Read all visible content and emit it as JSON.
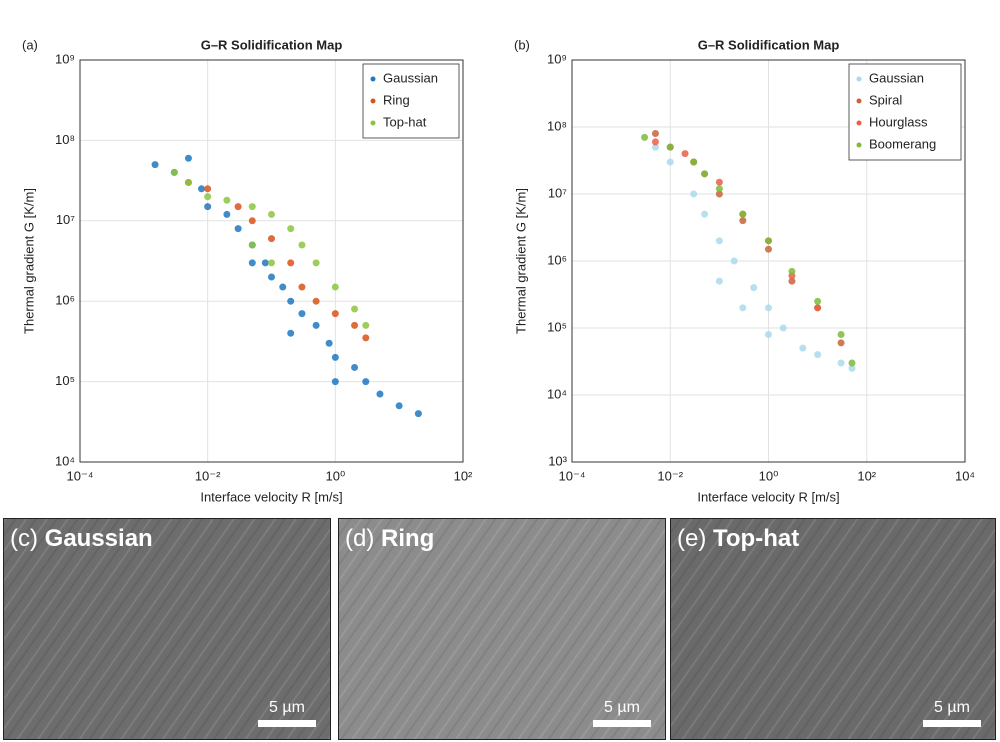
{
  "chart_data": [
    {
      "type": "scatter",
      "panel_label": "(a)",
      "title": "G–R Solidification Map",
      "x_label": "Interface velocity R [m/s]",
      "y_label": "Thermal gradient G [K/m]",
      "log_x": true,
      "log_y": true,
      "grid": true,
      "legend": "upper right",
      "xlim": [
        0.0001,
        100
      ],
      "ylim": [
        10000,
        1000000000
      ],
      "xticks": [
        {
          "value": 0.0001,
          "label": "10⁻⁴"
        },
        {
          "value": 0.01,
          "label": "10⁻²"
        },
        {
          "value": 1,
          "label": "10⁰"
        },
        {
          "value": 100,
          "label": "10²"
        }
      ],
      "yticks": [
        {
          "value": 10000,
          "label": "10⁴"
        },
        {
          "value": 100000,
          "label": "10⁵"
        },
        {
          "value": 1000000,
          "label": "10⁶"
        },
        {
          "value": 10000000,
          "label": "10⁷"
        },
        {
          "value": 100000000,
          "label": "10⁸"
        },
        {
          "value": 1000000000,
          "label": "10⁹"
        }
      ],
      "series": [
        {
          "name": "Gaussian",
          "color": "#1f78c1",
          "x": [
            0.0015,
            0.003,
            0.005,
            0.008,
            0.01,
            0.02,
            0.03,
            0.05,
            0.08,
            0.1,
            0.15,
            0.2,
            0.3,
            0.5,
            0.8,
            1,
            2,
            3,
            5,
            10,
            20,
            0.05,
            0.2,
            1
          ],
          "values": [
            50000000,
            40000000,
            60000000,
            25000000,
            15000000,
            12000000,
            8000000,
            5000000,
            3000000,
            2000000,
            1500000,
            1000000,
            700000,
            500000,
            300000,
            200000,
            150000,
            100000,
            70000,
            50000,
            40000,
            3000000,
            400000,
            100000
          ]
        },
        {
          "name": "Ring",
          "color": "#d9541a",
          "x": [
            0.005,
            0.01,
            0.03,
            0.05,
            0.1,
            0.2,
            0.3,
            0.5,
            1,
            2,
            3
          ],
          "values": [
            30000000,
            25000000,
            15000000,
            10000000,
            6000000,
            3000000,
            1500000,
            1000000,
            700000,
            500000,
            350000
          ]
        },
        {
          "name": "Top-hat",
          "color": "#8cc63f",
          "x": [
            0.003,
            0.005,
            0.01,
            0.02,
            0.05,
            0.1,
            0.2,
            0.3,
            0.5,
            1,
            2,
            3,
            0.05,
            0.1
          ],
          "values": [
            40000000,
            30000000,
            20000000,
            18000000,
            15000000,
            12000000,
            8000000,
            5000000,
            3000000,
            1500000,
            800000,
            500000,
            5000000,
            3000000
          ]
        }
      ]
    },
    {
      "type": "scatter",
      "panel_label": "(b)",
      "title": "G–R Solidification Map",
      "x_label": "Interface velocity R [m/s]",
      "y_label": "Thermal gradient G [K/m]",
      "log_x": true,
      "log_y": true,
      "grid": true,
      "legend": "upper right",
      "xlim": [
        0.0001,
        10000
      ],
      "ylim": [
        1000,
        1000000000
      ],
      "xticks": [
        {
          "value": 0.0001,
          "label": "10⁻⁴"
        },
        {
          "value": 0.01,
          "label": "10⁻²"
        },
        {
          "value": 1,
          "label": "10⁰"
        },
        {
          "value": 100,
          "label": "10²"
        },
        {
          "value": 10000,
          "label": "10⁴"
        }
      ],
      "yticks": [
        {
          "value": 1000,
          "label": "10³"
        },
        {
          "value": 10000,
          "label": "10⁴"
        },
        {
          "value": 100000,
          "label": "10⁵"
        },
        {
          "value": 1000000,
          "label": "10⁶"
        },
        {
          "value": 10000000,
          "label": "10⁷"
        },
        {
          "value": 100000000,
          "label": "10⁸"
        },
        {
          "value": 1000000000,
          "label": "10⁹"
        }
      ],
      "series": [
        {
          "name": "Gaussian",
          "color": "#a9d9ec",
          "x": [
            0.005,
            0.01,
            0.03,
            0.05,
            0.1,
            0.2,
            0.5,
            1,
            2,
            5,
            10,
            0.1,
            0.3,
            1,
            30,
            50
          ],
          "values": [
            50000000,
            30000000,
            10000000,
            5000000,
            2000000,
            1000000,
            400000,
            200000,
            100000,
            50000,
            40000,
            500000,
            200000,
            80000,
            30000,
            25000
          ]
        },
        {
          "name": "Spiral",
          "color": "#c8643a",
          "x": [
            0.005,
            0.01,
            0.03,
            0.1,
            0.3,
            1,
            3,
            10,
            30
          ],
          "values": [
            80000000,
            50000000,
            30000000,
            10000000,
            4000000,
            1500000,
            500000,
            200000,
            60000
          ]
        },
        {
          "name": "Hourglass",
          "color": "#e8604a",
          "x": [
            0.005,
            0.02,
            0.05,
            0.1,
            0.3,
            1,
            3,
            10
          ],
          "values": [
            60000000,
            40000000,
            20000000,
            15000000,
            5000000,
            2000000,
            600000,
            200000
          ]
        },
        {
          "name": "Boomerang",
          "color": "#7cbb3a",
          "x": [
            0.003,
            0.01,
            0.03,
            0.05,
            0.1,
            0.3,
            1,
            3,
            10,
            30,
            50
          ],
          "values": [
            70000000,
            50000000,
            30000000,
            20000000,
            12000000,
            5000000,
            2000000,
            700000,
            250000,
            80000,
            30000
          ]
        }
      ]
    }
  ],
  "panels": [
    {
      "label": "(c)",
      "title": "Gaussian",
      "scale_bar": "5 µm"
    },
    {
      "label": "(d)",
      "title": "Ring",
      "scale_bar": "5 µm"
    },
    {
      "label": "(e)",
      "title": "Top-hat",
      "scale_bar": "5 µm"
    }
  ]
}
